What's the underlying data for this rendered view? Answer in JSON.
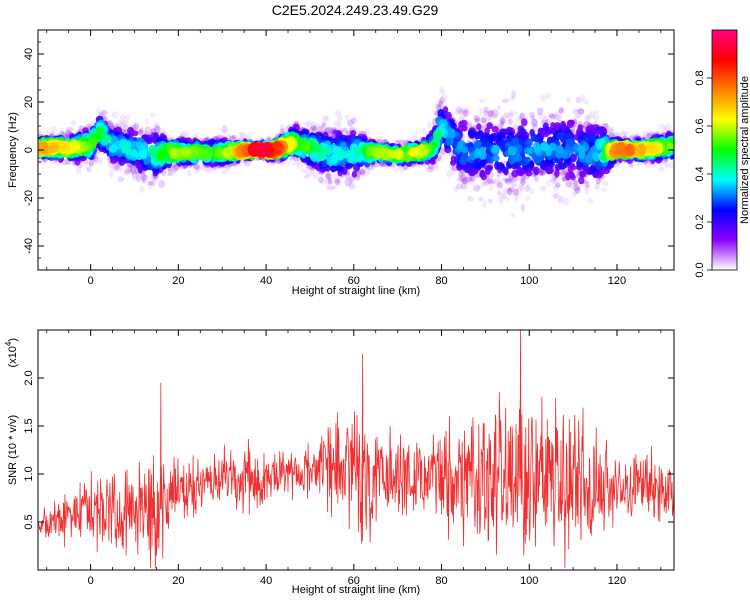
{
  "title": "C2E5.2024.249.23.49.G29",
  "colors": {
    "snr_line": "#f03030",
    "axis": "#000000"
  },
  "chart_data": [
    {
      "type": "heatmap",
      "xlabel": "Height of straight line (km)",
      "ylabel": "Frequency (Hz)",
      "xlim": [
        -12,
        133
      ],
      "ylim": [
        -50,
        50
      ],
      "xticks": [
        0,
        20,
        40,
        60,
        80,
        100,
        120
      ],
      "yticks": [
        40,
        20,
        0,
        -20,
        -40
      ],
      "ytick_labels": [
        "40",
        "20",
        "0",
        "-20",
        "-40"
      ],
      "colorbar": {
        "label": "Normalized spectral amplitude",
        "range": [
          0.0,
          1.0
        ],
        "ticks": [
          0.0,
          0.2,
          0.4,
          0.6,
          0.8
        ],
        "tick_labels": [
          "0.0",
          "0.2",
          "0.4",
          "0.6",
          "0.8"
        ],
        "colormap": [
          "#ffffff",
          "#8b00ff",
          "#0000ff",
          "#00ffff",
          "#00ff00",
          "#ffff00",
          "#ff8000",
          "#ff0000",
          "#ff0080"
        ]
      },
      "ridge": {
        "x": [
          -12,
          -5,
          0,
          2,
          5,
          10,
          15,
          18,
          25,
          30,
          38,
          42,
          46,
          50,
          55,
          60,
          65,
          70,
          75,
          78,
          80,
          82,
          85,
          90,
          95,
          100,
          105,
          110,
          115,
          120,
          125,
          130,
          133
        ],
        "freq": [
          1,
          1,
          2,
          8,
          2,
          0,
          -2,
          -1,
          -1,
          -1,
          0,
          0,
          3,
          1,
          -2,
          -1,
          -1,
          -2,
          -1,
          1,
          10,
          5,
          0,
          0,
          -1,
          0,
          1,
          0,
          -1,
          0,
          0,
          1,
          2
        ],
        "spread": [
          3,
          4,
          5,
          6,
          6,
          7,
          8,
          4,
          4,
          4,
          2,
          3,
          5,
          6,
          8,
          8,
          3,
          3,
          3,
          5,
          8,
          9,
          10,
          10,
          11,
          10,
          10,
          11,
          10,
          3,
          3,
          4,
          4
        ],
        "peak": [
          0.7,
          0.6,
          0.5,
          0.45,
          0.35,
          0.35,
          0.4,
          0.55,
          0.5,
          0.5,
          0.9,
          0.85,
          0.55,
          0.45,
          0.35,
          0.35,
          0.55,
          0.55,
          0.6,
          0.45,
          0.35,
          0.3,
          0.3,
          0.3,
          0.28,
          0.3,
          0.3,
          0.28,
          0.3,
          0.75,
          0.7,
          0.55,
          0.5
        ]
      }
    },
    {
      "type": "line",
      "xlabel": "Height of straight line (km)",
      "ylabel": "SNR (10 * v/v)",
      "scale_label": "(x10",
      "scale_exp": "4",
      "scale_close": ")",
      "xlim": [
        -12,
        133
      ],
      "ylim": [
        0.0,
        2.5
      ],
      "xticks": [
        0,
        20,
        40,
        60,
        80,
        100,
        120
      ],
      "yticks": [
        0.5,
        1.0,
        1.5,
        2.0
      ],
      "ytick_labels": [
        "0.5",
        "1.0",
        "1.5",
        "2.0"
      ],
      "envelope": {
        "x": [
          -12,
          -5,
          0,
          5,
          10,
          15,
          18,
          25,
          30,
          35,
          38,
          40,
          45,
          50,
          55,
          60,
          63,
          66,
          70,
          75,
          80,
          85,
          90,
          95,
          100,
          105,
          110,
          115,
          120,
          125,
          130,
          133
        ],
        "mean": [
          0.45,
          0.55,
          0.6,
          0.65,
          0.6,
          0.55,
          0.8,
          0.9,
          0.95,
          0.95,
          0.9,
          0.95,
          1.0,
          1.0,
          1.05,
          1.0,
          0.95,
          1.0,
          1.0,
          0.95,
          0.95,
          0.95,
          0.95,
          0.95,
          0.95,
          0.95,
          0.9,
          0.9,
          0.85,
          0.9,
          0.9,
          0.85
        ],
        "amp": [
          0.2,
          0.35,
          0.45,
          0.55,
          0.6,
          0.85,
          0.4,
          0.35,
          0.4,
          0.45,
          0.5,
          0.25,
          0.3,
          0.35,
          0.65,
          0.8,
          0.8,
          0.6,
          0.55,
          0.4,
          0.75,
          0.85,
          0.95,
          1.05,
          1.1,
          1.0,
          0.95,
          0.85,
          0.35,
          0.4,
          0.45,
          0.35
        ]
      },
      "peaks": [
        {
          "x": 16,
          "y": 1.95
        },
        {
          "x": 62,
          "y": 2.25
        },
        {
          "x": 98,
          "y": 2.5
        }
      ]
    }
  ]
}
